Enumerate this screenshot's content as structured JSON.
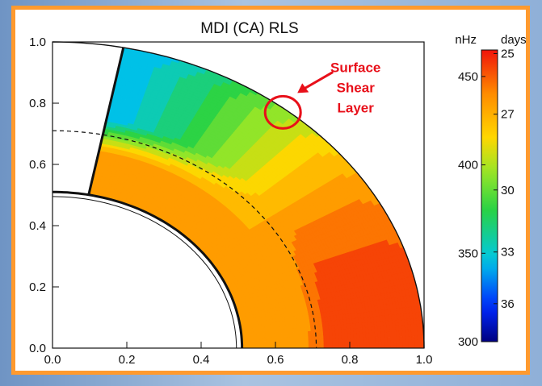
{
  "chart_data": {
    "type": "contour",
    "title": "MDI (CA) RLS",
    "xlim": [
      0.0,
      1.0
    ],
    "ylim": [
      0.0,
      1.0
    ],
    "x_ticks": [
      "0.0",
      "0.2",
      "0.4",
      "0.6",
      "0.8",
      "1.0"
    ],
    "y_ticks": [
      "0.0",
      "0.2",
      "0.4",
      "0.6",
      "0.8",
      "1.0"
    ],
    "quadrant_radius": 1.0,
    "inner_radius": 0.51,
    "tachocline_radius": 0.71,
    "latitude_cut_deg": 79,
    "annotation": {
      "lines": [
        "Surface",
        "Shear",
        "Layer"
      ],
      "circle_center": [
        0.62,
        0.77
      ],
      "color": "#e8101a"
    },
    "colorbar": {
      "left_label": "nHz",
      "right_label": "days",
      "nhz_ticks": [
        "300",
        "350",
        "400",
        "450"
      ],
      "nhz_range": [
        300,
        465
      ],
      "days_ticks": [
        "25",
        "27",
        "30",
        "33",
        "36"
      ]
    },
    "contour_levels_nhz": [
      465,
      455,
      445,
      435,
      425,
      415,
      405,
      395,
      385,
      375,
      365,
      355,
      345
    ],
    "rotation_model": {
      "equator_rate_nhz": 465,
      "pole_rate_nhz": 345,
      "radiative_interior_nhz": 435,
      "tachocline_zone_nhz": 452
    }
  }
}
